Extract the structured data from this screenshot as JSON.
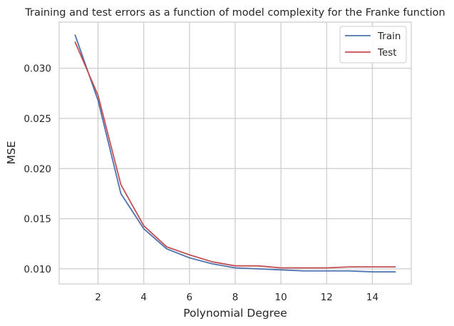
{
  "chart_data": {
    "type": "line",
    "title": "Training and test errors as a function of model complexity for the Franke function",
    "xlabel": "Polynomial Degree",
    "ylabel": "MSE",
    "x": [
      1,
      2,
      3,
      4,
      5,
      6,
      7,
      8,
      9,
      10,
      11,
      12,
      13,
      14,
      15
    ],
    "series": [
      {
        "name": "Train",
        "color": "#4c72b0",
        "values": [
          0.0333,
          0.0268,
          0.0175,
          0.014,
          0.012,
          0.0111,
          0.0105,
          0.0101,
          0.01,
          0.0099,
          0.0098,
          0.0098,
          0.0098,
          0.0097,
          0.0097
        ]
      },
      {
        "name": "Test",
        "color": "#c44e52",
        "values": [
          0.0326,
          0.0273,
          0.0184,
          0.0143,
          0.0122,
          0.0114,
          0.0107,
          0.0103,
          0.0103,
          0.0101,
          0.0101,
          0.0101,
          0.0102,
          0.0102,
          0.0102
        ]
      }
    ],
    "xlim": [
      0.3,
      15.7
    ],
    "ylim": [
      0.0085,
      0.0346
    ],
    "xticks": [
      2,
      4,
      6,
      8,
      10,
      12,
      14
    ],
    "xtick_labels": [
      "2",
      "4",
      "6",
      "8",
      "10",
      "12",
      "14"
    ],
    "yticks": [
      0.01,
      0.015,
      0.02,
      0.025,
      0.03
    ],
    "ytick_labels": [
      "0.010",
      "0.015",
      "0.020",
      "0.025",
      "0.030"
    ],
    "grid": true,
    "legend_position": "top-right"
  }
}
